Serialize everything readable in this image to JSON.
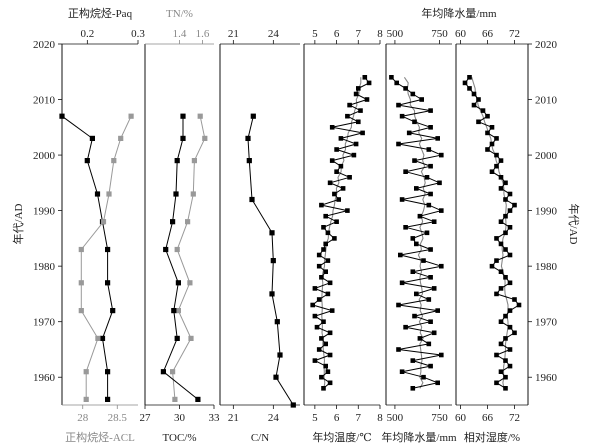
{
  "chart_data": {
    "type": "line",
    "y_axis": {
      "label_left": "年代/AD",
      "label_right": "年代/AD",
      "ylim": [
        1955,
        2020
      ],
      "ticks": [
        1960,
        1970,
        1980,
        1990,
        2000,
        2010,
        2020
      ]
    },
    "panels": [
      {
        "id": "paq-acl",
        "series": [
          {
            "name": "正构烷烃-Paq",
            "axis_position": "top",
            "color": "#000000",
            "marker": "square",
            "xlim": [
              0.15,
              0.3
            ],
            "ticks": [
              0.2,
              0.3
            ],
            "x": [
              0.15,
              0.21,
              0.2,
              0.22,
              0.23,
              0.24,
              0.24,
              0.25,
              0.23,
              0.24,
              0.24
            ],
            "y": [
              2007,
              2003,
              1999,
              1993,
              1988,
              1983,
              1977,
              1972,
              1967,
              1961,
              1956
            ]
          },
          {
            "name": "正构烷烃-ACL",
            "axis_position": "bottom",
            "color": "#999999",
            "marker": "square",
            "xlim": [
              27.7,
              28.8
            ],
            "ticks": [
              28.0,
              28.5
            ],
            "x": [
              28.7,
              28.55,
              28.45,
              28.38,
              28.3,
              27.98,
              27.98,
              27.98,
              28.22,
              28.05,
              28.05
            ],
            "y": [
              2007,
              2003,
              1999,
              1993,
              1988,
              1983,
              1977,
              1972,
              1967,
              1961,
              1956
            ]
          }
        ]
      },
      {
        "id": "tn-toc",
        "series": [
          {
            "name": "TN/%",
            "axis_position": "top",
            "color": "#999999",
            "marker": "square",
            "xlim": [
              1.1,
              1.7
            ],
            "ticks": [
              1.4,
              1.6
            ],
            "x": [
              1.58,
              1.62,
              1.53,
              1.52,
              1.47,
              1.38,
              1.49,
              1.39,
              1.5,
              1.34,
              1.36
            ],
            "y": [
              2007,
              2003,
              1999,
              1993,
              1988,
              1983,
              1977,
              1972,
              1967,
              1961,
              1956
            ]
          },
          {
            "name": "TOC/%",
            "axis_position": "bottom",
            "color": "#000000",
            "marker": "square",
            "xlim": [
              27,
              33
            ],
            "ticks": [
              27,
              30,
              33
            ],
            "x": [
              30.3,
              30.3,
              29.8,
              29.7,
              29.4,
              28.8,
              29.9,
              29.5,
              29.8,
              28.6,
              31.6
            ],
            "y": [
              2007,
              2003,
              1999,
              1993,
              1988,
              1983,
              1977,
              1972,
              1967,
              1961,
              1956
            ]
          }
        ]
      },
      {
        "id": "cn",
        "series": [
          {
            "name": "C/N",
            "axis_position": "both",
            "color": "#000000",
            "marker": "square",
            "xlim": [
              20,
              26
            ],
            "ticks_top": [
              21,
              24
            ],
            "ticks_bottom": [
              21,
              24
            ],
            "x": [
              22.5,
              22.1,
              22.2,
              22.4,
              23.9,
              24.0,
              23.9,
              24.3,
              24.5,
              24.2,
              25.5
            ],
            "y": [
              2007,
              2003,
              1999,
              1992,
              1986,
              1981,
              1975,
              1970,
              1964,
              1960,
              1955
            ]
          }
        ]
      },
      {
        "id": "temperature",
        "series": [
          {
            "name": "年均温度/℃",
            "axis_position": "both",
            "color": "#000000",
            "marker": "square",
            "smoothed_color": "#888888",
            "xlim": [
              4.5,
              8.0
            ],
            "ticks": [
              5,
              6,
              7,
              8
            ],
            "x": [
              7.3,
              7.5,
              7.0,
              6.9,
              7.4,
              6.6,
              7.1,
              6.5,
              7.0,
              5.8,
              7.2,
              6.2,
              6.9,
              6.0,
              6.8,
              5.8,
              6.2,
              6.0,
              6.6,
              5.7,
              6.3,
              5.9,
              6.1,
              5.3,
              6.5,
              5.5,
              6.0,
              5.4,
              5.6,
              5.9,
              5.5,
              5.4,
              5.2,
              5.6,
              5.2,
              5.5,
              5.3,
              5.7,
              5.0,
              5.6,
              5.2,
              4.9,
              5.8,
              5.0,
              5.4,
              5.1,
              5.7,
              5.3,
              5.5,
              5.2,
              5.7,
              5.0,
              5.5,
              5.6,
              5.3,
              5.7,
              5.4
            ],
            "y": [
              2014,
              2013,
              2012,
              2011,
              2010,
              2009,
              2008,
              2007,
              2006,
              2005,
              2004,
              2003,
              2002,
              2001,
              2000,
              1999,
              1998,
              1997,
              1996,
              1995,
              1994,
              1993,
              1992,
              1991,
              1990,
              1989,
              1988,
              1987,
              1986,
              1985,
              1984,
              1983,
              1982,
              1981,
              1980,
              1979,
              1978,
              1977,
              1976,
              1975,
              1974,
              1973,
              1972,
              1971,
              1970,
              1969,
              1968,
              1967,
              1966,
              1965,
              1964,
              1963,
              1962,
              1961,
              1960,
              1959,
              1958
            ]
          }
        ]
      },
      {
        "id": "precipitation",
        "title": "年均降水量/mm",
        "series": [
          {
            "name": "年均降水量/mm",
            "axis_position": "both",
            "color": "#000000",
            "marker": "square",
            "smoothed_color": "#888888",
            "xlim": [
              450,
              820
            ],
            "ticks": [
              500,
              750
            ],
            "x": [
              480,
              510,
              560,
              600,
              650,
              520,
              700,
              540,
              610,
              700,
              580,
              740,
              520,
              690,
              760,
              610,
              700,
              560,
              680,
              750,
              620,
              700,
              540,
              690,
              760,
              640,
              720,
              560,
              680,
              600,
              620,
              700,
              530,
              660,
              760,
              600,
              700,
              540,
              720,
              620,
              690,
              520,
              740,
              610,
              700,
              560,
              720,
              640,
              690,
              520,
              760,
              600,
              700,
              540,
              660,
              740,
              600
            ],
            "y": [
              2014,
              2013,
              2012,
              2011,
              2010,
              2009,
              2008,
              2007,
              2006,
              2005,
              2004,
              2003,
              2002,
              2001,
              2000,
              1999,
              1998,
              1997,
              1996,
              1995,
              1994,
              1993,
              1992,
              1991,
              1990,
              1989,
              1988,
              1987,
              1986,
              1985,
              1984,
              1983,
              1982,
              1981,
              1980,
              1979,
              1978,
              1977,
              1976,
              1975,
              1974,
              1973,
              1972,
              1971,
              1970,
              1969,
              1968,
              1967,
              1966,
              1965,
              1964,
              1963,
              1962,
              1961,
              1960,
              1959,
              1958
            ]
          }
        ]
      },
      {
        "id": "humidity",
        "series": [
          {
            "name": "相对湿度/%",
            "axis_position": "both",
            "color": "#000000",
            "marker": "square",
            "smoothed_color": "#888888",
            "xlim": [
              59,
              75
            ],
            "ticks": [
              60,
              66,
              72
            ],
            "x": [
              62,
              61,
              62,
              63,
              64,
              63,
              65,
              66,
              64,
              67,
              66,
              68,
              67,
              66,
              68,
              69,
              68,
              67,
              69,
              70,
              69,
              71,
              70,
              72,
              71,
              70,
              69,
              71,
              70,
              68,
              69,
              70,
              71,
              68,
              67,
              69,
              70,
              71,
              69,
              68,
              72,
              73,
              71,
              70,
              69,
              71,
              72,
              70,
              69,
              71,
              68,
              70,
              71,
              69,
              70,
              68,
              70
            ],
            "y": [
              2014,
              2013,
              2012,
              2011,
              2010,
              2009,
              2008,
              2007,
              2006,
              2005,
              2004,
              2003,
              2002,
              2001,
              2000,
              1999,
              1998,
              1997,
              1996,
              1995,
              1994,
              1993,
              1992,
              1991,
              1990,
              1989,
              1988,
              1987,
              1986,
              1985,
              1984,
              1983,
              1982,
              1981,
              1980,
              1979,
              1978,
              1977,
              1976,
              1975,
              1974,
              1973,
              1972,
              1971,
              1970,
              1969,
              1968,
              1967,
              1966,
              1965,
              1964,
              1963,
              1962,
              1961,
              1960,
              1959,
              1958
            ]
          }
        ]
      }
    ],
    "grid": false
  }
}
